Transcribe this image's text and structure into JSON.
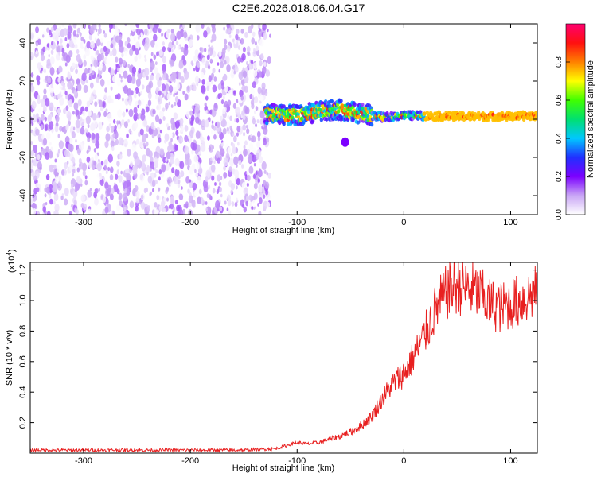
{
  "figure": {
    "title": "C2E6.2026.018.06.04.G17"
  },
  "chart_data": [
    {
      "type": "heatmap",
      "xlabel": "Height of straight line (km)",
      "ylabel": "Frequency (Hz)",
      "xlim": [
        -350,
        125
      ],
      "ylim": [
        -50,
        50
      ],
      "x_ticks": [
        -300,
        -200,
        -100,
        0,
        100
      ],
      "y_ticks": [
        -40,
        -20,
        0,
        20,
        40
      ],
      "colorbar": {
        "label": "Normalized spectral amplitude",
        "range": [
          0,
          1
        ],
        "ticks": [
          "0.0",
          "0.2",
          "0.4",
          "0.6",
          "0.8"
        ],
        "colors": [
          "#ffffff",
          "#c9a6f5",
          "#7b00ff",
          "#2030ff",
          "#00c8ff",
          "#00e070",
          "#40ff00",
          "#ffff00",
          "#ff8000",
          "#ff1010",
          "#ff0070"
        ]
      },
      "regions": [
        {
          "kind": "noise",
          "x_range": [
            -350,
            -125
          ],
          "freq_range": [
            -50,
            50
          ],
          "amplitude_range": [
            0.0,
            0.15
          ]
        },
        {
          "kind": "signal",
          "x_range": [
            -130,
            125
          ],
          "center_freq": [
            [
              -130,
              3
            ],
            [
              -100,
              2
            ],
            [
              -80,
              4
            ],
            [
              -60,
              5
            ],
            [
              -40,
              3
            ],
            [
              -20,
              1
            ],
            [
              0,
              2
            ],
            [
              50,
              1.5
            ],
            [
              100,
              1.5
            ],
            [
              125,
              2
            ]
          ],
          "peak_amplitude_range": [
            0.3,
            0.9
          ]
        },
        {
          "kind": "blob",
          "x": -55,
          "freq": -12,
          "amplitude": 0.15
        }
      ]
    },
    {
      "type": "line",
      "xlabel": "Height of straight line (km)",
      "ylabel": "SNR (10 * v/v)",
      "multiplier_label": "(x10",
      "multiplier_exp": "4",
      "multiplier_close": ")",
      "xlim": [
        -350,
        125
      ],
      "ylim": [
        0,
        1.25
      ],
      "x_ticks": [
        -300,
        -200,
        -100,
        0,
        100
      ],
      "y_ticks": [
        0.2,
        0.4,
        0.6,
        0.8,
        1.0,
        1.2
      ],
      "series": [
        {
          "color": "#e82020",
          "x": [
            -350,
            -300,
            -250,
            -200,
            -150,
            -120,
            -110,
            -100,
            -90,
            -80,
            -70,
            -60,
            -50,
            -40,
            -30,
            -20,
            -10,
            0,
            10,
            20,
            30,
            40,
            50,
            60,
            70,
            80,
            90,
            100,
            110,
            120,
            125
          ],
          "y": [
            0.02,
            0.02,
            0.02,
            0.02,
            0.02,
            0.03,
            0.05,
            0.07,
            0.06,
            0.07,
            0.09,
            0.11,
            0.14,
            0.18,
            0.24,
            0.36,
            0.46,
            0.52,
            0.64,
            0.78,
            0.95,
            1.05,
            1.1,
            1.08,
            1.05,
            0.98,
            0.95,
            0.98,
            1.0,
            1.04,
            1.05
          ]
        }
      ]
    }
  ]
}
